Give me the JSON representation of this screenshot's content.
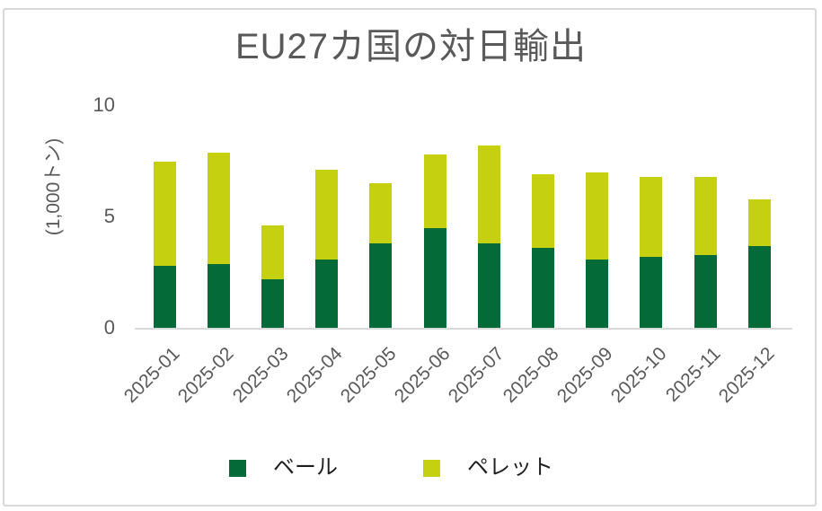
{
  "chart_data": {
    "type": "bar",
    "stacked": true,
    "title": "EU27カ国の対日輸出",
    "ylabel": "(1,000トン)",
    "categories": [
      "2025-01",
      "2025-02",
      "2025-03",
      "2025-04",
      "2025-05",
      "2025-06",
      "2025-07",
      "2025-08",
      "2025-09",
      "2025-10",
      "2025-11",
      "2025-12"
    ],
    "series": [
      {
        "id": "bale",
        "name": "ベール",
        "color": "#046a38",
        "values": [
          2.8,
          2.9,
          2.2,
          3.1,
          3.8,
          4.5,
          3.8,
          3.6,
          3.1,
          3.2,
          3.3,
          3.7
        ]
      },
      {
        "id": "pellet",
        "name": "ペレット",
        "color": "#c4d010",
        "values": [
          4.7,
          5.0,
          2.4,
          4.0,
          2.7,
          3.3,
          4.4,
          3.3,
          3.9,
          3.6,
          3.5,
          2.1
        ]
      }
    ],
    "ylim": [
      0,
      10
    ],
    "yticks": [
      0,
      5,
      10
    ],
    "grid": false,
    "legend_position": "bottom"
  },
  "style": {
    "title_color": "#595959",
    "axis_label_color": "#595959",
    "legend_text_color": "#1f1f1f",
    "axis_line_color": "#d9d9d9",
    "card_border_color": "#d8d8d8",
    "background": "#ffffff"
  }
}
